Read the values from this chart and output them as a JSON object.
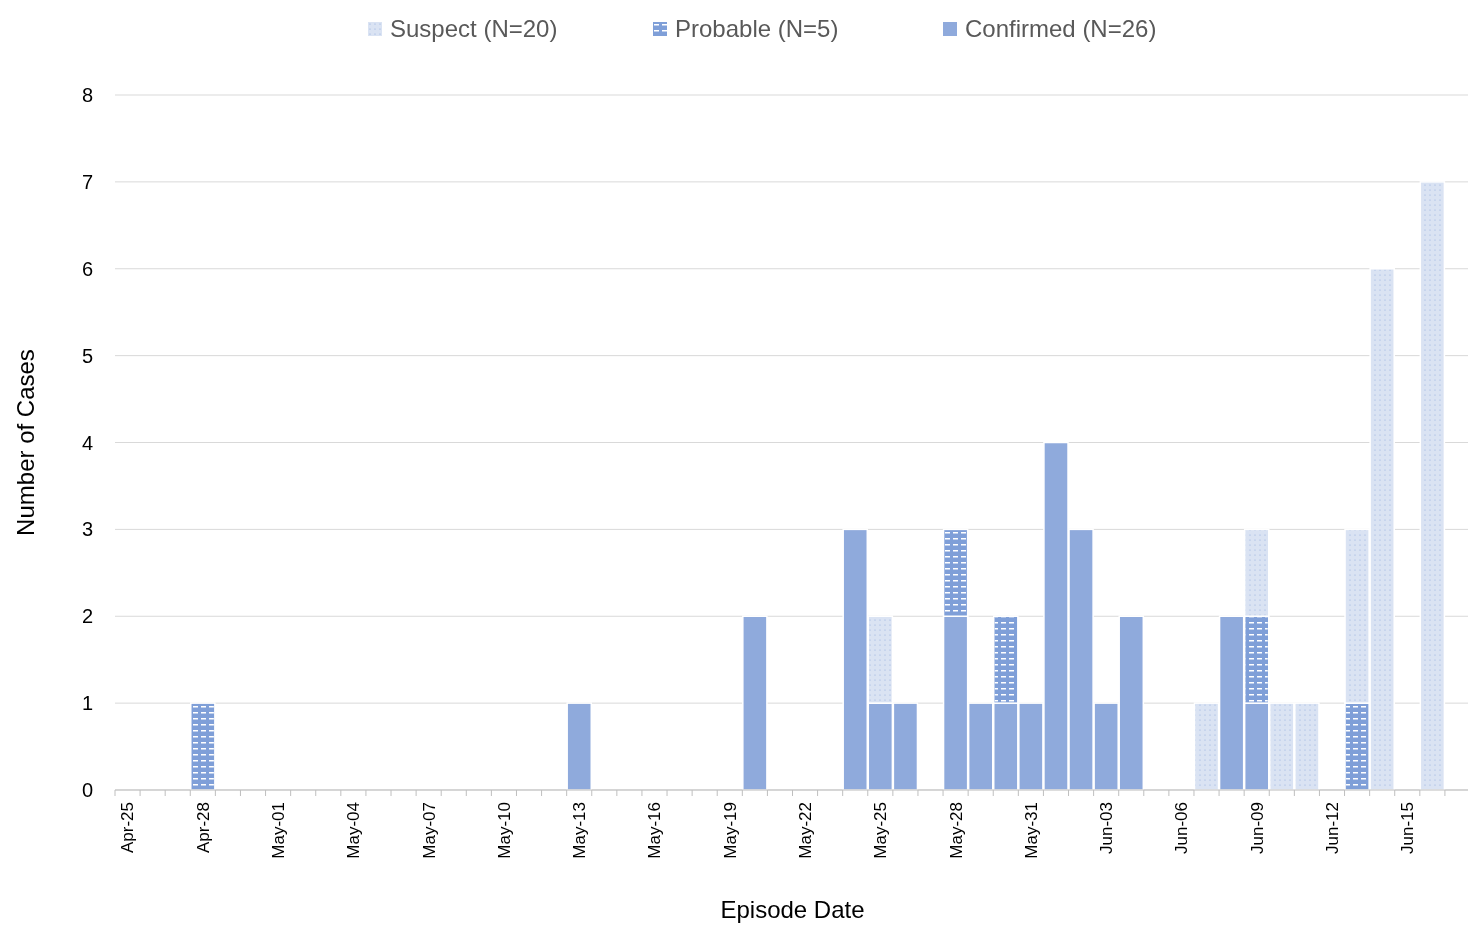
{
  "chart_data": {
    "type": "bar",
    "stacked": true,
    "xlabel": "Episode Date",
    "ylabel": "Number of Cases",
    "categories": [
      "Apr-25",
      null,
      null,
      "Apr-28",
      null,
      null,
      "May-01",
      null,
      null,
      "May-04",
      null,
      null,
      "May-07",
      null,
      null,
      "May-10",
      null,
      null,
      "May-13",
      null,
      null,
      "May-16",
      null,
      null,
      "May-19",
      null,
      null,
      "May-22",
      null,
      null,
      "May-25",
      null,
      null,
      "May-28",
      null,
      null,
      "May-31",
      null,
      null,
      "Jun-03",
      null,
      null,
      "Jun-06",
      null,
      null,
      "Jun-09",
      null,
      null,
      "Jun-12",
      null,
      null,
      "Jun-15",
      null,
      null
    ],
    "series": [
      {
        "name": "Confirmed (N=26)",
        "color": "#8faadc",
        "values": [
          0,
          0,
          0,
          0,
          0,
          0,
          0,
          0,
          0,
          0,
          0,
          0,
          0,
          0,
          0,
          0,
          0,
          0,
          1,
          0,
          0,
          0,
          0,
          0,
          0,
          2,
          0,
          0,
          0,
          3,
          1,
          1,
          0,
          2,
          1,
          1,
          1,
          4,
          3,
          1,
          2,
          0,
          0,
          0,
          2,
          1,
          0,
          0,
          0,
          0,
          0,
          0,
          0,
          0
        ]
      },
      {
        "name": "Probable (N=5)",
        "color": "#7f9fd8",
        "values": [
          0,
          0,
          0,
          1,
          0,
          0,
          0,
          0,
          0,
          0,
          0,
          0,
          0,
          0,
          0,
          0,
          0,
          0,
          0,
          0,
          0,
          0,
          0,
          0,
          0,
          0,
          0,
          0,
          0,
          0,
          0,
          0,
          0,
          1,
          0,
          1,
          0,
          0,
          0,
          0,
          0,
          0,
          0,
          0,
          0,
          1,
          0,
          0,
          0,
          1,
          0,
          0,
          0,
          0
        ]
      },
      {
        "name": "Suspect (N=20)",
        "color": "#dae3f3",
        "values": [
          0,
          0,
          0,
          0,
          0,
          0,
          0,
          0,
          0,
          0,
          0,
          0,
          0,
          0,
          0,
          0,
          0,
          0,
          0,
          0,
          0,
          0,
          0,
          0,
          0,
          0,
          0,
          0,
          0,
          0,
          1,
          0,
          0,
          0,
          0,
          0,
          0,
          0,
          0,
          0,
          0,
          0,
          0,
          1,
          0,
          1,
          1,
          1,
          0,
          2,
          6,
          0,
          7,
          0
        ]
      }
    ],
    "ylim": [
      0,
      8
    ],
    "yticks": [
      0,
      1,
      2,
      3,
      4,
      5,
      6,
      7,
      8
    ],
    "grid": "y",
    "legend": "top"
  }
}
